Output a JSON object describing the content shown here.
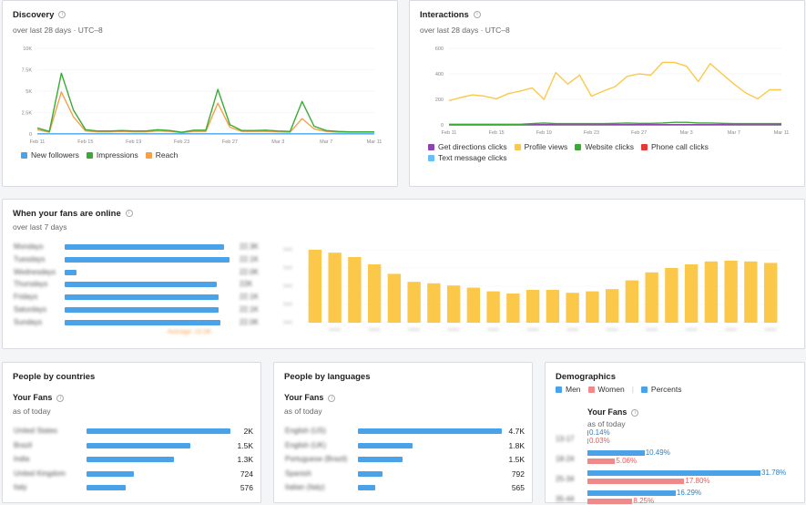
{
  "colors": {
    "blue": "#4aa3e8",
    "green": "#3aaa35",
    "orange": "#f5a14a",
    "yellow": "#fcc84a",
    "purple": "#8e44ad",
    "red": "#e53935",
    "lightblue": "#66c0f4",
    "pink": "#f08a8a"
  },
  "discovery": {
    "title": "Discovery",
    "subtitle": "over last 28 days · UTC–8",
    "legend": [
      {
        "label": "New followers",
        "color": "#4aa3e8"
      },
      {
        "label": "Impressions",
        "color": "#3aaa35"
      },
      {
        "label": "Reach",
        "color": "#f5a14a"
      }
    ],
    "chart_data": {
      "type": "line",
      "title": "",
      "xlabel": "",
      "ylabel": "",
      "ylim": [
        0,
        10000
      ],
      "yticks": [
        "0",
        "2.5K",
        "5K",
        "7.5K",
        "10K"
      ],
      "xticks": [
        "Feb 11",
        "Feb 15",
        "Feb 19",
        "Feb 23",
        "Feb 27",
        "Mar 3",
        "Mar 7",
        "Mar 11"
      ],
      "x": [
        "Feb 11",
        "Feb 12",
        "Feb 13",
        "Feb 14",
        "Feb 15",
        "Feb 16",
        "Feb 17",
        "Feb 18",
        "Feb 19",
        "Feb 20",
        "Feb 21",
        "Feb 22",
        "Feb 23",
        "Feb 24",
        "Feb 25",
        "Feb 26",
        "Feb 27",
        "Feb 28",
        "Mar 1",
        "Mar 2",
        "Mar 3",
        "Mar 4",
        "Mar 5",
        "Mar 6",
        "Mar 7",
        "Mar 8",
        "Mar 9",
        "Mar 10",
        "Mar 11"
      ],
      "series": [
        {
          "name": "New followers",
          "values": [
            20,
            20,
            20,
            20,
            20,
            20,
            20,
            20,
            20,
            20,
            20,
            20,
            20,
            20,
            20,
            20,
            20,
            20,
            20,
            20,
            20,
            20,
            20,
            20,
            20,
            20,
            20,
            20,
            20
          ]
        },
        {
          "name": "Impressions",
          "values": [
            700,
            300,
            7100,
            2800,
            500,
            350,
            350,
            400,
            350,
            350,
            500,
            400,
            200,
            450,
            450,
            5200,
            1100,
            400,
            400,
            450,
            350,
            300,
            3800,
            900,
            400,
            300,
            250,
            250,
            250
          ]
        },
        {
          "name": "Reach",
          "values": [
            500,
            200,
            4900,
            2000,
            350,
            250,
            250,
            300,
            250,
            250,
            350,
            300,
            150,
            300,
            300,
            3600,
            800,
            300,
            300,
            300,
            250,
            200,
            1800,
            600,
            300,
            200,
            200,
            200,
            200
          ]
        }
      ]
    }
  },
  "interactions": {
    "title": "Interactions",
    "subtitle": "over last 28 days · UTC–8",
    "legend": [
      {
        "label": "Get directions clicks",
        "color": "#8e44ad"
      },
      {
        "label": "Profile views",
        "color": "#fcc84a"
      },
      {
        "label": "Website clicks",
        "color": "#3aaa35"
      },
      {
        "label": "Phone call clicks",
        "color": "#e53935"
      },
      {
        "label": "Text message clicks",
        "color": "#66c0f4"
      }
    ],
    "chart_data": {
      "type": "line",
      "title": "",
      "ylim": [
        0,
        600
      ],
      "yticks": [
        "0",
        "200",
        "400",
        "600"
      ],
      "xticks": [
        "Feb 11",
        "Feb 15",
        "Feb 19",
        "Feb 23",
        "Feb 27",
        "Mar 3",
        "Mar 7",
        "Mar 11"
      ],
      "x": [
        "Feb 11",
        "Feb 12",
        "Feb 13",
        "Feb 14",
        "Feb 15",
        "Feb 16",
        "Feb 17",
        "Feb 18",
        "Feb 19",
        "Feb 20",
        "Feb 21",
        "Feb 22",
        "Feb 23",
        "Feb 24",
        "Feb 25",
        "Feb 26",
        "Feb 27",
        "Feb 28",
        "Mar 1",
        "Mar 2",
        "Mar 3",
        "Mar 4",
        "Mar 5",
        "Mar 6",
        "Mar 7",
        "Mar 8",
        "Mar 9",
        "Mar 10",
        "Mar 11"
      ],
      "series": [
        {
          "name": "Profile views",
          "values": [
            190,
            215,
            235,
            225,
            205,
            245,
            265,
            290,
            200,
            410,
            320,
            390,
            225,
            265,
            300,
            380,
            400,
            390,
            490,
            490,
            460,
            340,
            480,
            400,
            320,
            250,
            205,
            275,
            275
          ]
        },
        {
          "name": "Website clicks",
          "values": [
            5,
            5,
            5,
            5,
            5,
            5,
            5,
            10,
            15,
            10,
            10,
            10,
            10,
            10,
            12,
            15,
            12,
            12,
            15,
            20,
            20,
            15,
            15,
            12,
            10,
            10,
            10,
            10,
            10
          ]
        },
        {
          "name": "Get directions clicks",
          "values": [
            2,
            2,
            2,
            2,
            2,
            2,
            2,
            2,
            2,
            2,
            2,
            2,
            2,
            2,
            2,
            2,
            2,
            2,
            2,
            2,
            2,
            2,
            2,
            2,
            2,
            2,
            2,
            2,
            2
          ]
        },
        {
          "name": "Phone call clicks",
          "values": [
            1,
            1,
            1,
            1,
            1,
            1,
            1,
            1,
            1,
            1,
            1,
            1,
            1,
            1,
            1,
            1,
            1,
            1,
            1,
            1,
            1,
            1,
            1,
            1,
            1,
            1,
            1,
            1,
            1
          ]
        },
        {
          "name": "Text message clicks",
          "values": [
            0,
            0,
            0,
            0,
            0,
            0,
            0,
            0,
            0,
            0,
            0,
            0,
            0,
            0,
            0,
            0,
            0,
            0,
            0,
            0,
            0,
            0,
            0,
            0,
            0,
            0,
            0,
            0,
            0
          ]
        }
      ]
    }
  },
  "fans_online": {
    "title": "When your fans are online",
    "subtitle": "over last 7 days",
    "days": [
      {
        "label": "Mondays",
        "value": "22.3K",
        "fraction": 0.92
      },
      {
        "label": "Tuesdays",
        "value": "22.1K",
        "fraction": 0.95
      },
      {
        "label": "Wednesdays",
        "value": "22.0K",
        "fraction": 0.07
      },
      {
        "label": "Thursdays",
        "value": "22K",
        "fraction": 0.88
      },
      {
        "label": "Fridays",
        "value": "22.1K",
        "fraction": 0.89
      },
      {
        "label": "Saturdays",
        "value": "22.1K",
        "fraction": 0.89
      },
      {
        "label": "Sundays",
        "value": "22.0K",
        "fraction": 0.9
      }
    ],
    "average_label": "Average: 22.0K",
    "hourly": {
      "type": "bar",
      "values": [
        100,
        96,
        90,
        80,
        67,
        56,
        54,
        51,
        48,
        43,
        40,
        45,
        45,
        41,
        43,
        46,
        58,
        69,
        75,
        80,
        84,
        85,
        84,
        82
      ]
    }
  },
  "countries": {
    "title": "People by countries",
    "subheading": "Your Fans",
    "sub": "as of today",
    "rows": [
      {
        "label": "United States",
        "value": "2K",
        "fraction": 1.0
      },
      {
        "label": "Brazil",
        "value": "1.5K",
        "fraction": 0.72
      },
      {
        "label": "India",
        "value": "1.3K",
        "fraction": 0.61
      },
      {
        "label": "United Kingdom",
        "value": "724",
        "fraction": 0.33
      },
      {
        "label": "Italy",
        "value": "576",
        "fraction": 0.27
      }
    ]
  },
  "languages": {
    "title": "People by languages",
    "subheading": "Your Fans",
    "sub": "as of today",
    "rows": [
      {
        "label": "English (US)",
        "value": "4.7K",
        "fraction": 1.0
      },
      {
        "label": "English (UK)",
        "value": "1.8K",
        "fraction": 0.38
      },
      {
        "label": "Portuguese (Brazil)",
        "value": "1.5K",
        "fraction": 0.31
      },
      {
        "label": "Spanish",
        "value": "792",
        "fraction": 0.17
      },
      {
        "label": "Italian (Italy)",
        "value": "565",
        "fraction": 0.12
      }
    ]
  },
  "demographics": {
    "title": "Demographics",
    "legend": [
      {
        "label": "Men",
        "color": "#4aa3e8"
      },
      {
        "label": "Women",
        "color": "#f08a8a"
      },
      {
        "label": "Percents",
        "color": "#4aa3e8"
      }
    ],
    "subheading": "Your Fans",
    "sub": "as of today",
    "rows": [
      {
        "age": "13-17",
        "men": "0.14%",
        "women": "0.03%",
        "men_frac": 0.0045,
        "women_frac": 0.001
      },
      {
        "age": "18-24",
        "men": "10.49%",
        "women": "5.06%",
        "men_frac": 0.33,
        "women_frac": 0.16
      },
      {
        "age": "25-34",
        "men": "31.78%",
        "women": "17.80%",
        "men_frac": 1.0,
        "women_frac": 0.56
      },
      {
        "age": "35-44",
        "men": "16.29%",
        "women": "8.25%",
        "men_frac": 0.51,
        "women_frac": 0.26
      }
    ]
  }
}
